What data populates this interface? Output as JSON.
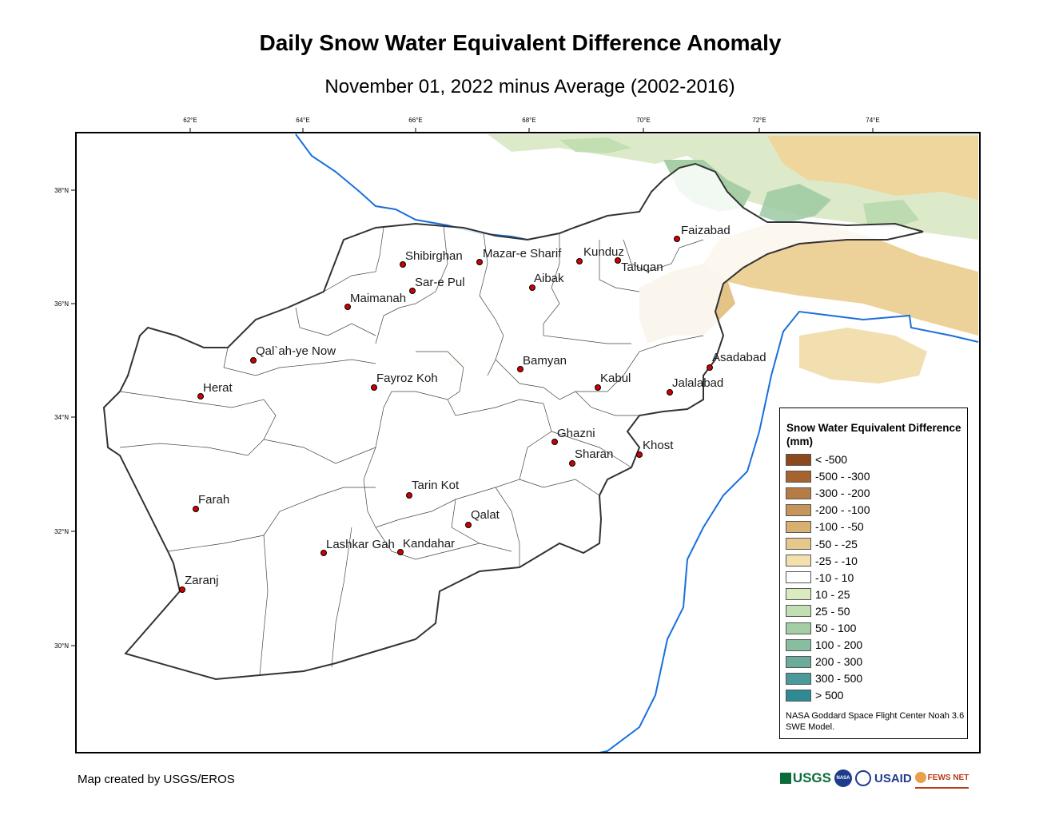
{
  "title": "Daily Snow Water Equivalent Difference Anomaly",
  "subtitle": "November 01, 2022 minus Average (2002-2016)",
  "longitude_ticks": [
    "62°E",
    "64°E",
    "66°E",
    "68°E",
    "70°E",
    "72°E",
    "74°E"
  ],
  "latitude_ticks": [
    "38°N",
    "36°N",
    "34°N",
    "32°N",
    "30°N"
  ],
  "cities": [
    {
      "name": "Faizabad"
    },
    {
      "name": "Shibirghan"
    },
    {
      "name": "Mazar-e Sharif"
    },
    {
      "name": "Kunduz"
    },
    {
      "name": "Taluqan"
    },
    {
      "name": "Sar-e Pul"
    },
    {
      "name": "Aibak"
    },
    {
      "name": "Maimanah"
    },
    {
      "name": "Qal`ah-ye Now"
    },
    {
      "name": "Bamyan"
    },
    {
      "name": "Asadabad"
    },
    {
      "name": "Herat"
    },
    {
      "name": "Fayroz Koh"
    },
    {
      "name": "Kabul"
    },
    {
      "name": "Jalalabad"
    },
    {
      "name": "Ghazni"
    },
    {
      "name": "Khost"
    },
    {
      "name": "Sharan"
    },
    {
      "name": "Tarin Kot"
    },
    {
      "name": "Farah"
    },
    {
      "name": "Qalat"
    },
    {
      "name": "Lashkar Gah"
    },
    {
      "name": "Kandahar"
    },
    {
      "name": "Zaranj"
    }
  ],
  "legend": {
    "title": "Snow Water Equivalent Difference (mm)",
    "items": [
      {
        "label": "< -500",
        "color": "#8c4a1c"
      },
      {
        "label": "-500 - -300",
        "color": "#a5642f"
      },
      {
        "label": "-300 - -200",
        "color": "#b57c46"
      },
      {
        "label": "-200 - -100",
        "color": "#c6955b"
      },
      {
        "label": "-100 - -50",
        "color": "#d7b072"
      },
      {
        "label": "-50 - -25",
        "color": "#e5c98c"
      },
      {
        "label": "-25 - -10",
        "color": "#f2e0ad"
      },
      {
        "label": "-10 - 10",
        "color": "#ffffff"
      },
      {
        "label": "10 - 25",
        "color": "#dbebc0"
      },
      {
        "label": "25 - 50",
        "color": "#c2dfb1"
      },
      {
        "label": "50 - 100",
        "color": "#a4cfa4"
      },
      {
        "label": "100 - 200",
        "color": "#88bea0"
      },
      {
        "label": "200 - 300",
        "color": "#6aab9c"
      },
      {
        "label": "300 - 500",
        "color": "#4b999a"
      },
      {
        "label": "> 500",
        "color": "#2f8a94"
      }
    ],
    "note": "NASA Goddard Space Flight Center Noah 3.6 SWE Model."
  },
  "credit": "Map created by USGS/EROS",
  "logos": [
    "USGS",
    "NASA",
    "USAID",
    "FEWS NET"
  ],
  "colors": {
    "river": "#1a6fdc",
    "city_marker": "#d10000",
    "border": "#333333"
  }
}
